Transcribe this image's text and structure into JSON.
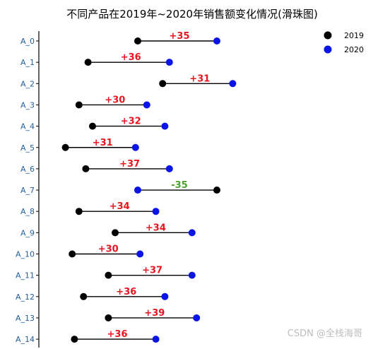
{
  "watermark": "CSDN @全栈海哥",
  "chart_data": {
    "type": "dumbbell",
    "title": "不同产品在2019年~2020年销售额变化情况(滑珠图)",
    "xlabel": "",
    "ylabel": "",
    "x_axis_visible": false,
    "grid": false,
    "legend_position": "top-right",
    "categories": [
      "A_0",
      "A_1",
      "A_2",
      "A_3",
      "A_4",
      "A_5",
      "A_6",
      "A_7",
      "A_8",
      "A_9",
      "A_10",
      "A_11",
      "A_12",
      "A_13",
      "A_14"
    ],
    "series": [
      {
        "name": "2019",
        "color": "#000000",
        "values": [
          50,
          28,
          61,
          24,
          30,
          18,
          27,
          85,
          24,
          40,
          21,
          37,
          26,
          37,
          22
        ]
      },
      {
        "name": "2020",
        "color": "#0a14e6",
        "values": [
          85,
          64,
          92,
          54,
          62,
          49,
          64,
          50,
          58,
          74,
          51,
          74,
          62,
          76,
          58
        ]
      }
    ],
    "differences": [
      "+35",
      "+36",
      "+31",
      "+30",
      "+32",
      "+31",
      "+37",
      "-35",
      "+34",
      "+34",
      "+30",
      "+37",
      "+36",
      "+39",
      "+36"
    ],
    "colors": {
      "increase": "#e8141e",
      "decrease": "#4aa32a",
      "connector": "#000000",
      "tick_label": "#1f5fa0"
    }
  }
}
